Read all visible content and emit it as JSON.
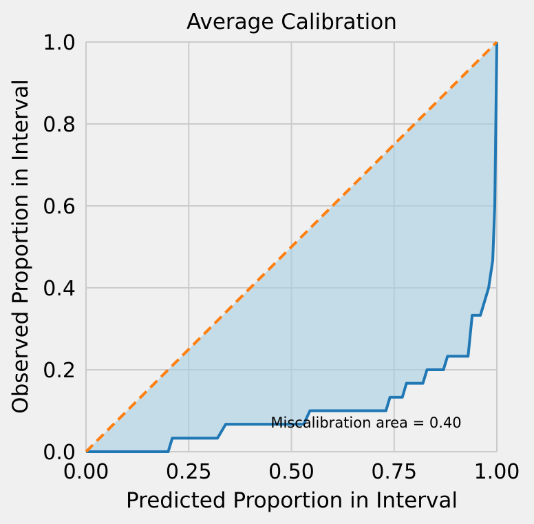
{
  "chart_data": {
    "type": "line",
    "title": "Average Calibration",
    "xlabel": "Predicted Proportion in Interval",
    "ylabel": "Observed Proportion in Interval",
    "xlim": [
      0,
      1
    ],
    "ylim": [
      0,
      1
    ],
    "grid": true,
    "xticks": [
      0,
      0.25,
      0.5,
      0.75,
      1.0
    ],
    "xtick_labels": [
      "0.00",
      "0.25",
      "0.50",
      "0.75",
      "1.00"
    ],
    "yticks": [
      0,
      0.2,
      0.4,
      0.6,
      0.8,
      1.0
    ],
    "ytick_labels": [
      "0.0",
      "0.2",
      "0.4",
      "0.6",
      "0.8",
      "1.0"
    ],
    "annotation": "Miscalibration area = 0.40",
    "series": [
      {
        "role": "observed",
        "style": "solid",
        "color": "#1f77b4",
        "x": [
          0,
          0.2,
          0.21,
          0.32,
          0.34,
          0.53,
          0.545,
          0.73,
          0.74,
          0.77,
          0.78,
          0.82,
          0.83,
          0.87,
          0.88,
          0.93,
          0.94,
          0.96,
          0.98,
          0.99,
          0.995,
          1.0
        ],
        "y": [
          0,
          0,
          0.033,
          0.033,
          0.067,
          0.067,
          0.1,
          0.1,
          0.133,
          0.133,
          0.167,
          0.167,
          0.2,
          0.2,
          0.233,
          0.233,
          0.333,
          0.333,
          0.4,
          0.467,
          0.6,
          1.0
        ]
      },
      {
        "role": "ideal",
        "style": "dashed",
        "color": "#ff7f0e",
        "x": [
          0,
          1
        ],
        "y": [
          0,
          1
        ]
      }
    ],
    "fill_color": "#a6cee3"
  }
}
